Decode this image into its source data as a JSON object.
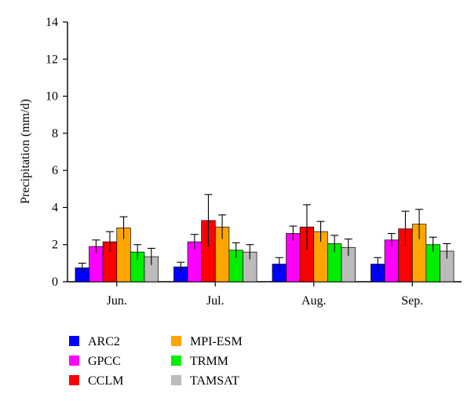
{
  "chart_data": {
    "type": "bar",
    "title": "",
    "xlabel": "",
    "ylabel": "Precipitation (mm/d)",
    "ylim": [
      0,
      14
    ],
    "yticks": [
      0,
      2,
      4,
      6,
      8,
      10,
      12,
      14
    ],
    "grid": false,
    "legend_position": "bottom-left",
    "error_bars": true,
    "categories": [
      "Jun.",
      "Jul.",
      "Aug.",
      "Sep."
    ],
    "series": [
      {
        "name": "ARC2",
        "color": "#0000ff",
        "values": [
          0.75,
          0.8,
          0.95,
          0.95
        ],
        "errors": [
          0.25,
          0.25,
          0.35,
          0.35
        ]
      },
      {
        "name": "GPCC",
        "color": "#ff00ff",
        "values": [
          1.9,
          2.15,
          2.6,
          2.25
        ],
        "errors": [
          0.35,
          0.4,
          0.4,
          0.35
        ]
      },
      {
        "name": "CCLM",
        "color": "#ff0000",
        "values": [
          2.15,
          3.3,
          2.95,
          2.85
        ],
        "errors": [
          0.55,
          1.4,
          1.2,
          0.95
        ]
      },
      {
        "name": "MPI-ESM",
        "color": "#ffa500",
        "values": [
          2.9,
          2.95,
          2.7,
          3.1
        ],
        "errors": [
          0.6,
          0.65,
          0.55,
          0.8
        ]
      },
      {
        "name": "TRMM",
        "color": "#00ee00",
        "values": [
          1.6,
          1.7,
          2.05,
          2.0
        ],
        "errors": [
          0.4,
          0.4,
          0.45,
          0.4
        ]
      },
      {
        "name": "TAMSAT",
        "color": "#bbbbbb",
        "values": [
          1.35,
          1.6,
          1.85,
          1.65
        ],
        "errors": [
          0.45,
          0.4,
          0.45,
          0.4
        ]
      }
    ]
  }
}
